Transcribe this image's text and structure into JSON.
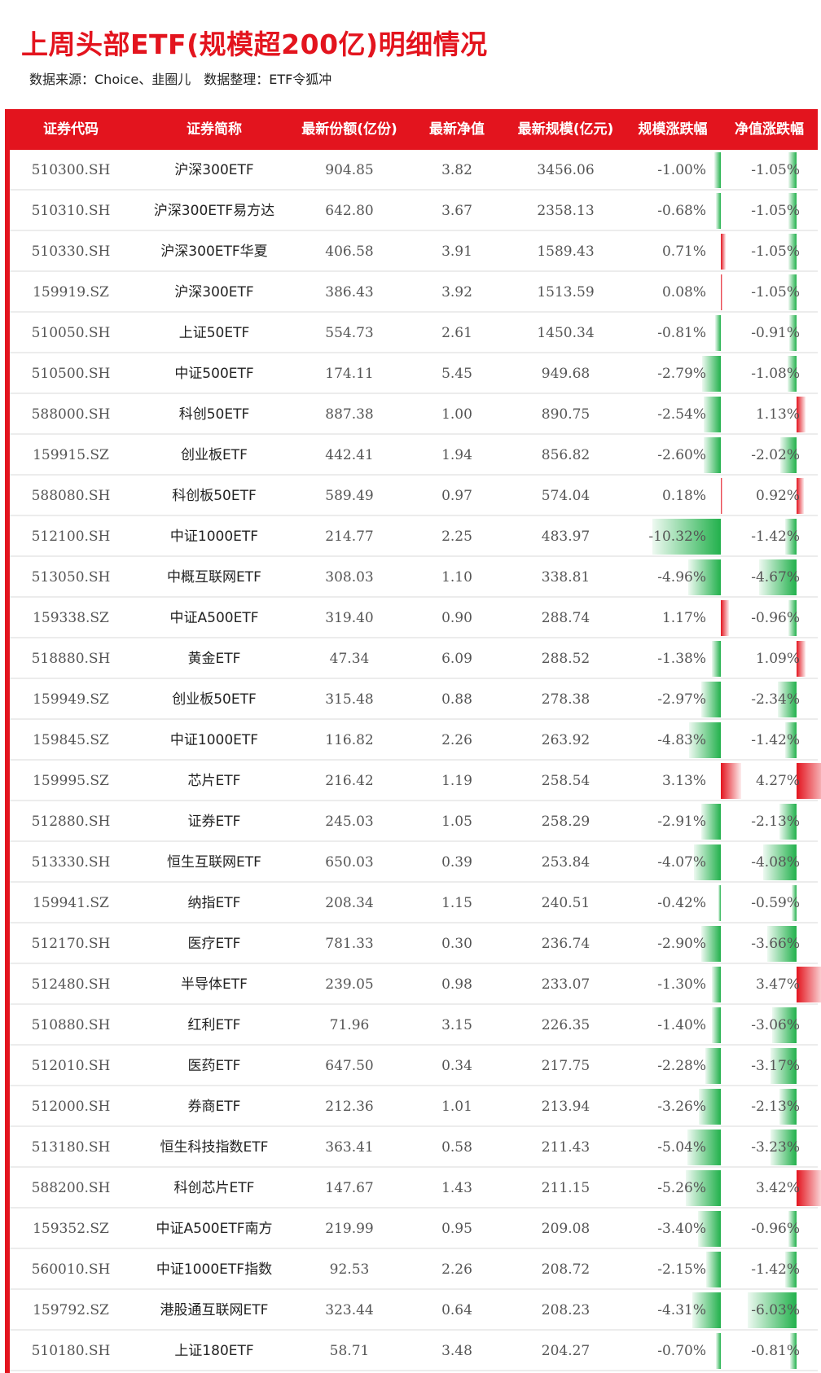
{
  "title": "上周头部ETF(规模超200亿)明细情况",
  "source": "数据来源：Choice、韭圈儿",
  "organizer": "数据整理：ETF令狐冲",
  "colors": {
    "accent": "#e3141e",
    "negative": "#22b14c",
    "positive": "#e3141e"
  },
  "columns": [
    "证券代码",
    "证券简称",
    "最新份额(亿份)",
    "最新净值",
    "最新规模(亿元)",
    "规模涨跌幅",
    "净值涨跌幅"
  ],
  "rows": [
    {
      "code": "510300.SH",
      "name": "沪深300ETF",
      "shares": "904.85",
      "nav": "3.82",
      "scale": "3456.06",
      "scale_chg": "-1.00%",
      "scale_chg_value": -1.0,
      "nav_chg": "-1.05%",
      "nav_chg_value": -1.05
    },
    {
      "code": "510310.SH",
      "name": "沪深300ETF易方达",
      "shares": "642.80",
      "nav": "3.67",
      "scale": "2358.13",
      "scale_chg": "-0.68%",
      "scale_chg_value": -0.68,
      "nav_chg": "-1.05%",
      "nav_chg_value": -1.05
    },
    {
      "code": "510330.SH",
      "name": "沪深300ETF华夏",
      "shares": "406.58",
      "nav": "3.91",
      "scale": "1589.43",
      "scale_chg": "0.71%",
      "scale_chg_value": 0.71,
      "nav_chg": "-1.05%",
      "nav_chg_value": -1.05
    },
    {
      "code": "159919.SZ",
      "name": "沪深300ETF",
      "shares": "386.43",
      "nav": "3.92",
      "scale": "1513.59",
      "scale_chg": "0.08%",
      "scale_chg_value": 0.08,
      "nav_chg": "-1.05%",
      "nav_chg_value": -1.05
    },
    {
      "code": "510050.SH",
      "name": "上证50ETF",
      "shares": "554.73",
      "nav": "2.61",
      "scale": "1450.34",
      "scale_chg": "-0.81%",
      "scale_chg_value": -0.81,
      "nav_chg": "-0.91%",
      "nav_chg_value": -0.91
    },
    {
      "code": "510500.SH",
      "name": "中证500ETF",
      "shares": "174.11",
      "nav": "5.45",
      "scale": "949.68",
      "scale_chg": "-2.79%",
      "scale_chg_value": -2.79,
      "nav_chg": "-1.08%",
      "nav_chg_value": -1.08
    },
    {
      "code": "588000.SH",
      "name": "科创50ETF",
      "shares": "887.38",
      "nav": "1.00",
      "scale": "890.75",
      "scale_chg": "-2.54%",
      "scale_chg_value": -2.54,
      "nav_chg": "1.13%",
      "nav_chg_value": 1.13
    },
    {
      "code": "159915.SZ",
      "name": "创业板ETF",
      "shares": "442.41",
      "nav": "1.94",
      "scale": "856.82",
      "scale_chg": "-2.60%",
      "scale_chg_value": -2.6,
      "nav_chg": "-2.02%",
      "nav_chg_value": -2.02
    },
    {
      "code": "588080.SH",
      "name": "科创板50ETF",
      "shares": "589.49",
      "nav": "0.97",
      "scale": "574.04",
      "scale_chg": "0.18%",
      "scale_chg_value": 0.18,
      "nav_chg": "0.92%",
      "nav_chg_value": 0.92
    },
    {
      "code": "512100.SH",
      "name": "中证1000ETF",
      "shares": "214.77",
      "nav": "2.25",
      "scale": "483.97",
      "scale_chg": "-10.32%",
      "scale_chg_value": -10.32,
      "nav_chg": "-1.42%",
      "nav_chg_value": -1.42
    },
    {
      "code": "513050.SH",
      "name": "中概互联网ETF",
      "shares": "308.03",
      "nav": "1.10",
      "scale": "338.81",
      "scale_chg": "-4.96%",
      "scale_chg_value": -4.96,
      "nav_chg": "-4.67%",
      "nav_chg_value": -4.67
    },
    {
      "code": "159338.SZ",
      "name": "中证A500ETF",
      "shares": "319.40",
      "nav": "0.90",
      "scale": "288.74",
      "scale_chg": "1.17%",
      "scale_chg_value": 1.17,
      "nav_chg": "-0.96%",
      "nav_chg_value": -0.96
    },
    {
      "code": "518880.SH",
      "name": "黄金ETF",
      "shares": "47.34",
      "nav": "6.09",
      "scale": "288.52",
      "scale_chg": "-1.38%",
      "scale_chg_value": -1.38,
      "nav_chg": "1.09%",
      "nav_chg_value": 1.09
    },
    {
      "code": "159949.SZ",
      "name": "创业板50ETF",
      "shares": "315.48",
      "nav": "0.88",
      "scale": "278.38",
      "scale_chg": "-2.97%",
      "scale_chg_value": -2.97,
      "nav_chg": "-2.34%",
      "nav_chg_value": -2.34
    },
    {
      "code": "159845.SZ",
      "name": "中证1000ETF",
      "shares": "116.82",
      "nav": "2.26",
      "scale": "263.92",
      "scale_chg": "-4.83%",
      "scale_chg_value": -4.83,
      "nav_chg": "-1.42%",
      "nav_chg_value": -1.42
    },
    {
      "code": "159995.SZ",
      "name": "芯片ETF",
      "shares": "216.42",
      "nav": "1.19",
      "scale": "258.54",
      "scale_chg": "3.13%",
      "scale_chg_value": 3.13,
      "nav_chg": "4.27%",
      "nav_chg_value": 4.27
    },
    {
      "code": "512880.SH",
      "name": "证券ETF",
      "shares": "245.03",
      "nav": "1.05",
      "scale": "258.29",
      "scale_chg": "-2.91%",
      "scale_chg_value": -2.91,
      "nav_chg": "-2.13%",
      "nav_chg_value": -2.13
    },
    {
      "code": "513330.SH",
      "name": "恒生互联网ETF",
      "shares": "650.03",
      "nav": "0.39",
      "scale": "253.84",
      "scale_chg": "-4.07%",
      "scale_chg_value": -4.07,
      "nav_chg": "-4.08%",
      "nav_chg_value": -4.08
    },
    {
      "code": "159941.SZ",
      "name": "纳指ETF",
      "shares": "208.34",
      "nav": "1.15",
      "scale": "240.51",
      "scale_chg": "-0.42%",
      "scale_chg_value": -0.42,
      "nav_chg": "-0.59%",
      "nav_chg_value": -0.59
    },
    {
      "code": "512170.SH",
      "name": "医疗ETF",
      "shares": "781.33",
      "nav": "0.30",
      "scale": "236.74",
      "scale_chg": "-2.90%",
      "scale_chg_value": -2.9,
      "nav_chg": "-3.66%",
      "nav_chg_value": -3.66
    },
    {
      "code": "512480.SH",
      "name": "半导体ETF",
      "shares": "239.05",
      "nav": "0.98",
      "scale": "233.07",
      "scale_chg": "-1.30%",
      "scale_chg_value": -1.3,
      "nav_chg": "3.47%",
      "nav_chg_value": 3.47
    },
    {
      "code": "510880.SH",
      "name": "红利ETF",
      "shares": "71.96",
      "nav": "3.15",
      "scale": "226.35",
      "scale_chg": "-1.40%",
      "scale_chg_value": -1.4,
      "nav_chg": "-3.06%",
      "nav_chg_value": -3.06
    },
    {
      "code": "512010.SH",
      "name": "医药ETF",
      "shares": "647.50",
      "nav": "0.34",
      "scale": "217.75",
      "scale_chg": "-2.28%",
      "scale_chg_value": -2.28,
      "nav_chg": "-3.17%",
      "nav_chg_value": -3.17
    },
    {
      "code": "512000.SH",
      "name": "券商ETF",
      "shares": "212.36",
      "nav": "1.01",
      "scale": "213.94",
      "scale_chg": "-3.26%",
      "scale_chg_value": -3.26,
      "nav_chg": "-2.13%",
      "nav_chg_value": -2.13
    },
    {
      "code": "513180.SH",
      "name": "恒生科技指数ETF",
      "shares": "363.41",
      "nav": "0.58",
      "scale": "211.43",
      "scale_chg": "-5.04%",
      "scale_chg_value": -5.04,
      "nav_chg": "-3.23%",
      "nav_chg_value": -3.23
    },
    {
      "code": "588200.SH",
      "name": "科创芯片ETF",
      "shares": "147.67",
      "nav": "1.43",
      "scale": "211.15",
      "scale_chg": "-5.26%",
      "scale_chg_value": -5.26,
      "nav_chg": "3.42%",
      "nav_chg_value": 3.42
    },
    {
      "code": "159352.SZ",
      "name": "中证A500ETF南方",
      "shares": "219.99",
      "nav": "0.95",
      "scale": "209.08",
      "scale_chg": "-3.40%",
      "scale_chg_value": -3.4,
      "nav_chg": "-0.96%",
      "nav_chg_value": -0.96
    },
    {
      "code": "560010.SH",
      "name": "中证1000ETF指数",
      "shares": "92.53",
      "nav": "2.26",
      "scale": "208.72",
      "scale_chg": "-2.15%",
      "scale_chg_value": -2.15,
      "nav_chg": "-1.42%",
      "nav_chg_value": -1.42
    },
    {
      "code": "159792.SZ",
      "name": "港股通互联网ETF",
      "shares": "323.44",
      "nav": "0.64",
      "scale": "208.23",
      "scale_chg": "-4.31%",
      "scale_chg_value": -4.31,
      "nav_chg": "-6.03%",
      "nav_chg_value": -6.03
    },
    {
      "code": "510180.SH",
      "name": "上证180ETF",
      "shares": "58.71",
      "nav": "3.48",
      "scale": "204.27",
      "scale_chg": "-0.70%",
      "scale_chg_value": -0.7,
      "nav_chg": "-0.81%",
      "nav_chg_value": -0.81
    }
  ]
}
